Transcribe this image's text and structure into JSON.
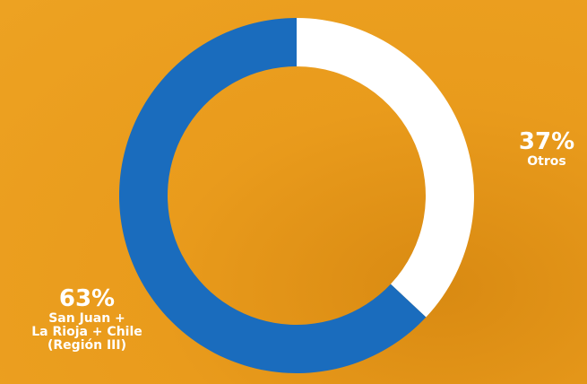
{
  "chart_data": {
    "type": "donut",
    "categories": [
      "Otros",
      "San Juan +\nLa Rioja + Chile\n(Región III)"
    ],
    "values": [
      37,
      63
    ],
    "value_labels": [
      "37%",
      "63%"
    ],
    "colors": [
      "#ffffff",
      "#1a6cbd"
    ]
  }
}
